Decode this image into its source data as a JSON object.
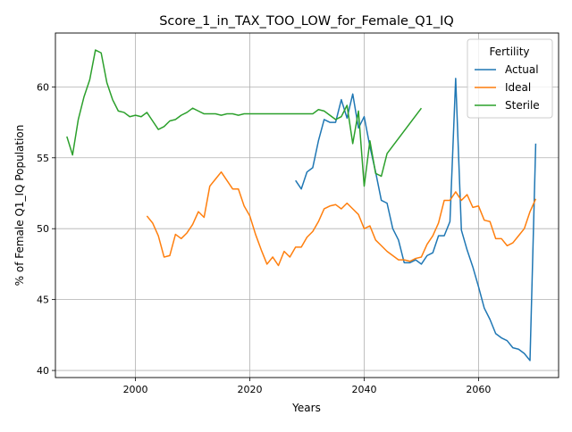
{
  "chart_data": {
    "type": "line",
    "title": "Score_1_in_TAX_TOO_LOW_for_Female_Q1_IQ",
    "xlabel": "Years",
    "ylabel": "% of Female Q1_IQ Population",
    "xlim": [
      1986,
      2074
    ],
    "ylim": [
      39.5,
      63.8
    ],
    "xticks": [
      2000,
      2020,
      2040,
      2060
    ],
    "yticks": [
      40,
      45,
      50,
      55,
      60
    ],
    "grid": true,
    "legend": {
      "title": "Fertility",
      "placement": "top-right"
    },
    "series": [
      {
        "name": "Actual",
        "color": "#1f77b4",
        "points": [
          [
            2028,
            53.4
          ],
          [
            2029,
            52.8
          ],
          [
            2030,
            54.0
          ],
          [
            2031,
            54.3
          ],
          [
            2032,
            56.2
          ],
          [
            2033,
            57.7
          ],
          [
            2034,
            57.5
          ],
          [
            2035,
            57.5
          ],
          [
            2036,
            59.1
          ],
          [
            2037,
            57.8
          ],
          [
            2038,
            59.5
          ],
          [
            2039,
            57.1
          ],
          [
            2040,
            57.9
          ],
          [
            2041,
            55.8
          ],
          [
            2042,
            54.0
          ],
          [
            2043,
            52.0
          ],
          [
            2044,
            51.8
          ],
          [
            2045,
            50.0
          ],
          [
            2046,
            49.2
          ],
          [
            2047,
            47.6
          ],
          [
            2048,
            47.6
          ],
          [
            2049,
            47.8
          ],
          [
            2050,
            47.5
          ],
          [
            2051,
            48.1
          ],
          [
            2052,
            48.3
          ],
          [
            2053,
            49.5
          ],
          [
            2054,
            49.5
          ],
          [
            2055,
            50.5
          ],
          [
            2056,
            60.6
          ],
          [
            2057,
            49.9
          ],
          [
            2058,
            48.5
          ],
          [
            2059,
            47.3
          ],
          [
            2060,
            45.9
          ],
          [
            2061,
            44.4
          ],
          [
            2062,
            43.6
          ],
          [
            2063,
            42.6
          ],
          [
            2064,
            42.3
          ],
          [
            2065,
            42.1
          ],
          [
            2066,
            41.6
          ],
          [
            2067,
            41.5
          ],
          [
            2068,
            41.2
          ],
          [
            2069,
            40.7
          ],
          [
            2070,
            56.0
          ]
        ]
      },
      {
        "name": "Ideal",
        "color": "#ff7f0e",
        "points": [
          [
            2002,
            50.9
          ],
          [
            2003,
            50.4
          ],
          [
            2004,
            49.5
          ],
          [
            2005,
            48.0
          ],
          [
            2006,
            48.1
          ],
          [
            2007,
            49.6
          ],
          [
            2008,
            49.3
          ],
          [
            2009,
            49.7
          ],
          [
            2010,
            50.3
          ],
          [
            2011,
            51.2
          ],
          [
            2012,
            50.8
          ],
          [
            2013,
            53.0
          ],
          [
            2014,
            53.5
          ],
          [
            2015,
            54.0
          ],
          [
            2016,
            53.4
          ],
          [
            2017,
            52.8
          ],
          [
            2018,
            52.8
          ],
          [
            2019,
            51.6
          ],
          [
            2020,
            50.9
          ],
          [
            2021,
            49.6
          ],
          [
            2022,
            48.5
          ],
          [
            2023,
            47.5
          ],
          [
            2024,
            48.0
          ],
          [
            2025,
            47.4
          ],
          [
            2026,
            48.4
          ],
          [
            2027,
            48.0
          ],
          [
            2028,
            48.7
          ],
          [
            2029,
            48.7
          ],
          [
            2030,
            49.4
          ],
          [
            2031,
            49.8
          ],
          [
            2032,
            50.5
          ],
          [
            2033,
            51.4
          ],
          [
            2034,
            51.6
          ],
          [
            2035,
            51.7
          ],
          [
            2036,
            51.4
          ],
          [
            2037,
            51.8
          ],
          [
            2038,
            51.4
          ],
          [
            2039,
            51.0
          ],
          [
            2040,
            50.0
          ],
          [
            2041,
            50.2
          ],
          [
            2042,
            49.2
          ],
          [
            2043,
            48.8
          ],
          [
            2044,
            48.4
          ],
          [
            2045,
            48.1
          ],
          [
            2046,
            47.8
          ],
          [
            2047,
            47.8
          ],
          [
            2048,
            47.7
          ],
          [
            2049,
            47.9
          ],
          [
            2050,
            48.0
          ],
          [
            2051,
            48.9
          ],
          [
            2052,
            49.5
          ],
          [
            2053,
            50.4
          ],
          [
            2054,
            52.0
          ],
          [
            2055,
            52.0
          ],
          [
            2056,
            52.6
          ],
          [
            2057,
            52.0
          ],
          [
            2058,
            52.4
          ],
          [
            2059,
            51.5
          ],
          [
            2060,
            51.6
          ],
          [
            2061,
            50.6
          ],
          [
            2062,
            50.5
          ],
          [
            2063,
            49.3
          ],
          [
            2064,
            49.3
          ],
          [
            2065,
            48.8
          ],
          [
            2066,
            49.0
          ],
          [
            2067,
            49.5
          ],
          [
            2068,
            50.0
          ],
          [
            2069,
            51.2
          ],
          [
            2070,
            52.1
          ]
        ]
      },
      {
        "name": "Sterile",
        "color": "#2ca02c",
        "points": [
          [
            1988,
            56.5
          ],
          [
            1989,
            55.2
          ],
          [
            1990,
            57.7
          ],
          [
            1991,
            59.3
          ],
          [
            1992,
            60.5
          ],
          [
            1993,
            62.6
          ],
          [
            1994,
            62.4
          ],
          [
            1995,
            60.3
          ],
          [
            1996,
            59.1
          ],
          [
            1997,
            58.3
          ],
          [
            1998,
            58.2
          ],
          [
            1999,
            57.9
          ],
          [
            2000,
            58.0
          ],
          [
            2001,
            57.9
          ],
          [
            2002,
            58.2
          ],
          [
            2003,
            57.6
          ],
          [
            2004,
            57.0
          ],
          [
            2005,
            57.2
          ],
          [
            2006,
            57.6
          ],
          [
            2007,
            57.7
          ],
          [
            2008,
            58.0
          ],
          [
            2009,
            58.2
          ],
          [
            2010,
            58.5
          ],
          [
            2011,
            58.3
          ],
          [
            2012,
            58.1
          ],
          [
            2013,
            58.1
          ],
          [
            2014,
            58.1
          ],
          [
            2015,
            58.0
          ],
          [
            2016,
            58.1
          ],
          [
            2017,
            58.1
          ],
          [
            2018,
            58.0
          ],
          [
            2019,
            58.1
          ],
          [
            2020,
            58.1
          ],
          [
            2021,
            58.1
          ],
          [
            2022,
            58.1
          ],
          [
            2023,
            58.1
          ],
          [
            2024,
            58.1
          ],
          [
            2025,
            58.1
          ],
          [
            2026,
            58.1
          ],
          [
            2027,
            58.1
          ],
          [
            2028,
            58.1
          ],
          [
            2029,
            58.1
          ],
          [
            2030,
            58.1
          ],
          [
            2031,
            58.1
          ],
          [
            2032,
            58.4
          ],
          [
            2033,
            58.3
          ],
          [
            2034,
            58.0
          ],
          [
            2035,
            57.7
          ],
          [
            2036,
            57.9
          ],
          [
            2037,
            58.7
          ],
          [
            2038,
            56.0
          ],
          [
            2039,
            58.3
          ],
          [
            2040,
            53.0
          ],
          [
            2041,
            56.2
          ],
          [
            2042,
            53.9
          ],
          [
            2043,
            53.7
          ],
          [
            2044,
            55.3
          ],
          [
            2050,
            58.5
          ]
        ]
      }
    ]
  }
}
